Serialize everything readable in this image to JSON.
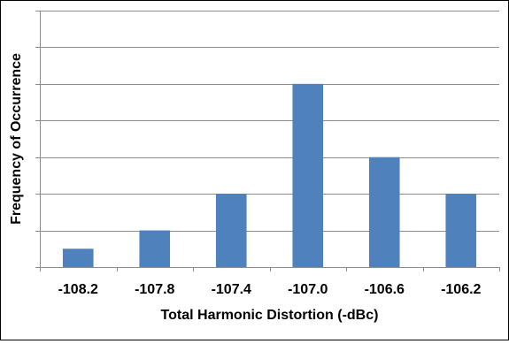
{
  "chart_data": {
    "type": "bar",
    "categories": [
      "-108.2",
      "-107.8",
      "-107.4",
      "-107.0",
      "-106.6",
      "-106.2"
    ],
    "values": [
      0.5,
      1,
      2,
      5,
      3,
      2
    ],
    "xlabel": "Total Harmonic Distortion (-dBc)",
    "ylabel": "Frequency of Occurrence",
    "ylim": [
      0,
      7
    ],
    "yticks": [
      0,
      1,
      2,
      3,
      4,
      5,
      6,
      7
    ],
    "show_y_tick_labels": false,
    "grid": true,
    "legend": "none",
    "colors": {
      "bar": "#4f81bd",
      "grid": "#8c8c8c",
      "axis": "#8c8c8c",
      "frame": "#000000"
    }
  }
}
